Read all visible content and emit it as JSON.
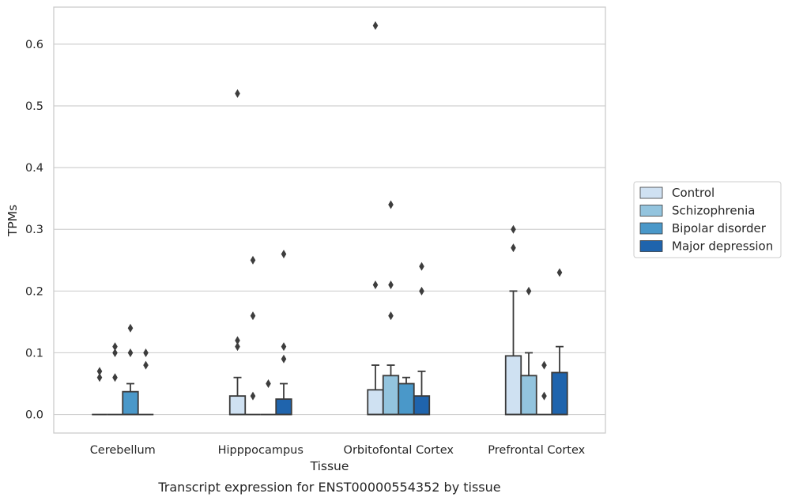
{
  "caption": "Transcript expression for ENST00000554352 by tissue",
  "chart_data": {
    "type": "boxplot",
    "xlabel": "Tissue",
    "ylabel": "TPMs",
    "ylim": [
      -0.03,
      0.66
    ],
    "y_ticks": [
      "0.0",
      "0.1",
      "0.2",
      "0.3",
      "0.4",
      "0.5",
      "0.6"
    ],
    "y_tick_values": [
      0.0,
      0.1,
      0.2,
      0.3,
      0.4,
      0.5,
      0.6
    ],
    "grid": "horizontal",
    "legend_position": "right-outside",
    "categories": [
      "Cerebellum",
      "Hipppocampus",
      "Orbitofontal Cortex",
      "Prefrontal Cortex"
    ],
    "series": [
      {
        "name": "Control",
        "color": "#cfe1f2",
        "boxes": [
          {
            "q1": 0,
            "median": 0,
            "q3": 0,
            "whisker_low": 0,
            "whisker_high": 0,
            "outliers": [
              0.06,
              0.07
            ]
          },
          {
            "q1": 0,
            "median": 0,
            "q3": 0.03,
            "whisker_low": 0,
            "whisker_high": 0.06,
            "outliers": [
              0.11,
              0.12,
              0.52
            ]
          },
          {
            "q1": 0,
            "median": 0,
            "q3": 0.04,
            "whisker_low": 0,
            "whisker_high": 0.08,
            "outliers": [
              0.21,
              0.63
            ]
          },
          {
            "q1": 0,
            "median": 0,
            "q3": 0.095,
            "whisker_low": 0,
            "whisker_high": 0.2,
            "outliers": [
              0.27,
              0.3
            ]
          }
        ]
      },
      {
        "name": "Schizophrenia",
        "color": "#93c4de",
        "boxes": [
          {
            "q1": 0,
            "median": 0,
            "q3": 0,
            "whisker_low": 0,
            "whisker_high": 0,
            "outliers": [
              0.06,
              0.1,
              0.11
            ]
          },
          {
            "q1": 0,
            "median": 0,
            "q3": 0,
            "whisker_low": 0,
            "whisker_high": 0,
            "outliers": [
              0.03,
              0.16,
              0.25
            ]
          },
          {
            "q1": 0,
            "median": 0,
            "q3": 0.063,
            "whisker_low": 0,
            "whisker_high": 0.08,
            "outliers": [
              0.16,
              0.21,
              0.34
            ]
          },
          {
            "q1": 0,
            "median": 0,
            "q3": 0.063,
            "whisker_low": 0,
            "whisker_high": 0.1,
            "outliers": [
              0.2
            ]
          }
        ]
      },
      {
        "name": "Bipolar disorder",
        "color": "#4a98c9",
        "boxes": [
          {
            "q1": 0,
            "median": 0,
            "q3": 0.037,
            "whisker_low": 0,
            "whisker_high": 0.05,
            "outliers": [
              0.1,
              0.14
            ]
          },
          {
            "q1": 0,
            "median": 0,
            "q3": 0,
            "whisker_low": 0,
            "whisker_high": 0,
            "outliers": [
              0.05
            ]
          },
          {
            "q1": 0,
            "median": 0,
            "q3": 0.05,
            "whisker_low": 0,
            "whisker_high": 0.06,
            "outliers": []
          },
          {
            "q1": 0,
            "median": 0,
            "q3": 0,
            "whisker_low": 0,
            "whisker_high": 0,
            "outliers": [
              0.03,
              0.08
            ]
          }
        ]
      },
      {
        "name": "Major depression",
        "color": "#1f64ad",
        "boxes": [
          {
            "q1": 0,
            "median": 0,
            "q3": 0,
            "whisker_low": 0,
            "whisker_high": 0,
            "outliers": [
              0.08,
              0.1
            ]
          },
          {
            "q1": 0,
            "median": 0,
            "q3": 0.025,
            "whisker_low": 0,
            "whisker_high": 0.05,
            "outliers": [
              0.09,
              0.11,
              0.26
            ]
          },
          {
            "q1": 0,
            "median": 0,
            "q3": 0.03,
            "whisker_low": 0,
            "whisker_high": 0.07,
            "outliers": [
              0.2,
              0.24
            ]
          },
          {
            "q1": 0,
            "median": 0,
            "q3": 0.068,
            "whisker_low": 0,
            "whisker_high": 0.11,
            "outliers": [
              0.23
            ]
          }
        ]
      }
    ]
  }
}
